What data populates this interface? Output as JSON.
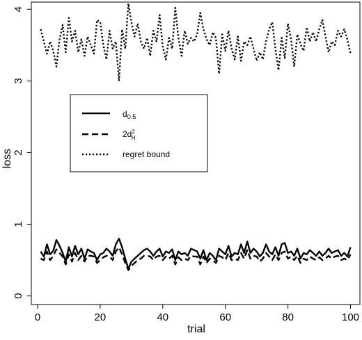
{
  "chart_data": {
    "type": "line",
    "xlabel": "trial",
    "ylabel": "loss",
    "xlim": [
      -2,
      103
    ],
    "ylim": [
      -0.12,
      4.1
    ],
    "xticks": [
      0,
      20,
      40,
      60,
      80,
      100
    ],
    "yticks": [
      0,
      1,
      2,
      3,
      4
    ],
    "x": [
      1,
      2,
      3,
      4,
      5,
      6,
      7,
      8,
      9,
      10,
      11,
      12,
      13,
      14,
      15,
      16,
      17,
      18,
      19,
      20,
      21,
      22,
      23,
      24,
      25,
      26,
      27,
      28,
      29,
      30,
      31,
      32,
      33,
      34,
      35,
      36,
      37,
      38,
      39,
      40,
      41,
      42,
      43,
      44,
      45,
      46,
      47,
      48,
      49,
      50,
      51,
      52,
      53,
      54,
      55,
      56,
      57,
      58,
      59,
      60,
      61,
      62,
      63,
      64,
      65,
      66,
      67,
      68,
      69,
      70,
      71,
      72,
      73,
      74,
      75,
      76,
      77,
      78,
      79,
      80,
      81,
      82,
      83,
      84,
      85,
      86,
      87,
      88,
      89,
      90,
      91,
      92,
      93,
      94,
      95,
      96,
      97,
      98,
      99,
      100
    ],
    "legend_position": "upper-left, inside",
    "series": [
      {
        "name": "d_{0.5}",
        "style": "solid",
        "values": [
          0.62,
          0.55,
          0.72,
          0.58,
          0.63,
          0.78,
          0.7,
          0.6,
          0.48,
          0.68,
          0.55,
          0.7,
          0.58,
          0.66,
          0.52,
          0.65,
          0.62,
          0.6,
          0.5,
          0.58,
          0.6,
          0.66,
          0.62,
          0.56,
          0.72,
          0.8,
          0.68,
          0.52,
          0.38,
          0.48,
          0.52,
          0.56,
          0.6,
          0.64,
          0.66,
          0.62,
          0.56,
          0.62,
          0.66,
          0.55,
          0.62,
          0.6,
          0.65,
          0.5,
          0.62,
          0.58,
          0.6,
          0.56,
          0.66,
          0.64,
          0.62,
          0.52,
          0.64,
          0.5,
          0.6,
          0.56,
          0.5,
          0.66,
          0.62,
          0.58,
          0.7,
          0.55,
          0.6,
          0.58,
          0.72,
          0.6,
          0.76,
          0.6,
          0.66,
          0.62,
          0.55,
          0.6,
          0.72,
          0.62,
          0.58,
          0.68,
          0.56,
          0.72,
          0.74,
          0.6,
          0.62,
          0.56,
          0.66,
          0.52,
          0.6,
          0.58,
          0.64,
          0.6,
          0.56,
          0.62,
          0.56,
          0.6,
          0.66,
          0.6,
          0.62,
          0.64,
          0.56,
          0.6,
          0.55,
          0.68
        ]
      },
      {
        "name": "2d_H^2",
        "style": "dashed",
        "values": [
          0.52,
          0.5,
          0.62,
          0.5,
          0.56,
          0.65,
          0.6,
          0.55,
          0.44,
          0.58,
          0.48,
          0.6,
          0.5,
          0.56,
          0.48,
          0.56,
          0.56,
          0.55,
          0.46,
          0.5,
          0.54,
          0.56,
          0.55,
          0.5,
          0.62,
          0.68,
          0.58,
          0.46,
          0.36,
          0.42,
          0.46,
          0.5,
          0.52,
          0.56,
          0.56,
          0.55,
          0.5,
          0.55,
          0.56,
          0.5,
          0.55,
          0.52,
          0.56,
          0.44,
          0.54,
          0.5,
          0.52,
          0.5,
          0.56,
          0.55,
          0.55,
          0.44,
          0.55,
          0.46,
          0.52,
          0.5,
          0.46,
          0.56,
          0.54,
          0.5,
          0.6,
          0.5,
          0.52,
          0.5,
          0.6,
          0.52,
          0.64,
          0.52,
          0.56,
          0.55,
          0.48,
          0.52,
          0.6,
          0.55,
          0.5,
          0.58,
          0.5,
          0.6,
          0.62,
          0.52,
          0.55,
          0.5,
          0.56,
          0.46,
          0.52,
          0.5,
          0.55,
          0.52,
          0.5,
          0.54,
          0.5,
          0.52,
          0.56,
          0.52,
          0.55,
          0.56,
          0.5,
          0.52,
          0.5,
          0.58
        ]
      },
      {
        "name": "regret bound",
        "style": "dotted",
        "values": [
          3.72,
          3.55,
          3.38,
          3.55,
          3.42,
          3.2,
          3.58,
          3.78,
          3.4,
          3.88,
          3.55,
          3.7,
          3.4,
          3.58,
          3.35,
          3.62,
          3.5,
          3.38,
          3.85,
          3.82,
          3.5,
          3.3,
          3.7,
          3.45,
          3.55,
          3.0,
          3.72,
          3.45,
          4.08,
          3.82,
          3.62,
          3.8,
          3.55,
          3.45,
          3.6,
          3.35,
          3.7,
          3.55,
          3.92,
          3.48,
          3.3,
          3.6,
          3.45,
          4.02,
          3.6,
          3.35,
          3.7,
          3.52,
          3.6,
          3.55,
          3.65,
          3.95,
          3.72,
          3.58,
          3.5,
          3.68,
          3.6,
          3.1,
          3.65,
          3.42,
          3.7,
          3.45,
          3.3,
          3.62,
          3.28,
          3.55,
          3.5,
          3.62,
          3.45,
          3.28,
          3.4,
          3.3,
          3.55,
          3.72,
          3.82,
          3.45,
          3.15,
          3.6,
          3.32,
          3.8,
          3.58,
          3.2,
          3.65,
          3.52,
          3.42,
          3.75,
          3.55,
          3.68,
          3.55,
          3.72,
          3.85,
          3.62,
          3.4,
          3.55,
          3.5,
          3.7,
          3.62,
          3.72,
          3.58,
          3.38
        ]
      }
    ]
  }
}
